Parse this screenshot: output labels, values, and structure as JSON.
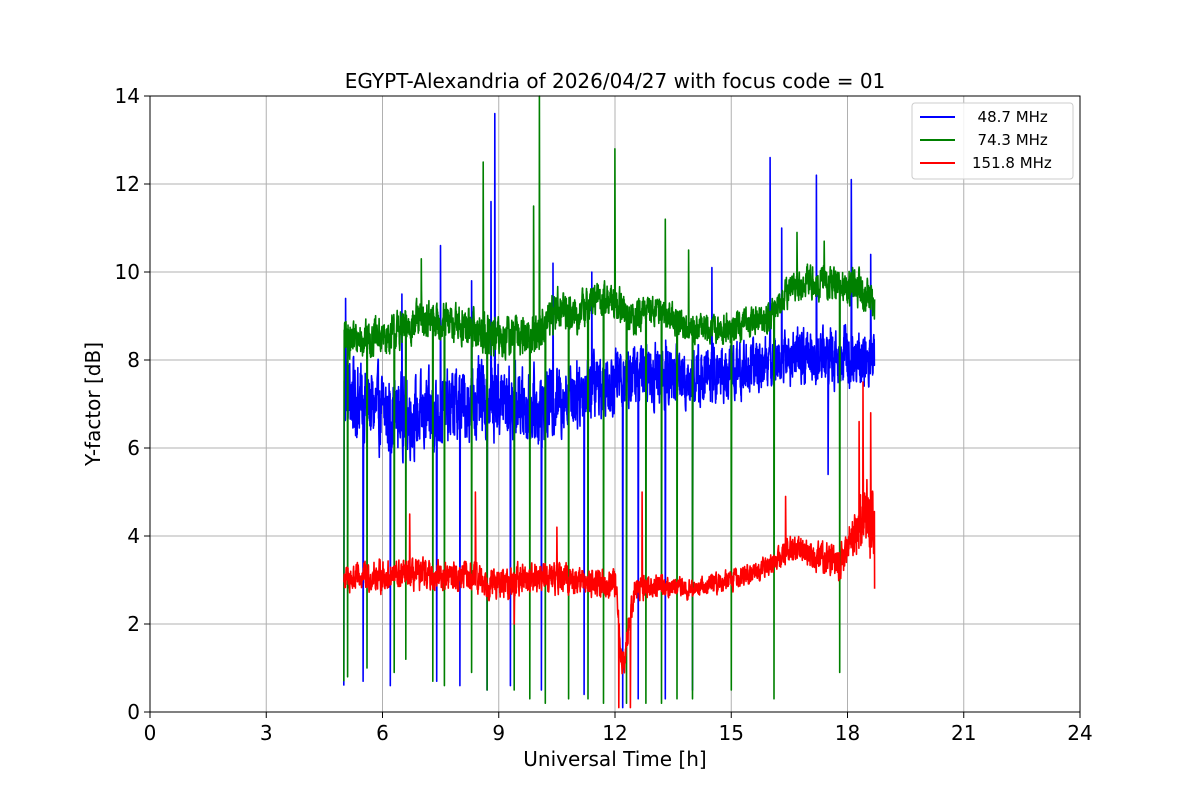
{
  "chart_data": {
    "type": "line",
    "title": "EGYPT-Alexandria of 2026/04/27 with focus code = 01",
    "xlabel": "Universal Time [h]",
    "ylabel": "Y-factor [dB]",
    "xlim": [
      0,
      24
    ],
    "ylim": [
      0,
      14
    ],
    "xticks": [
      0,
      3,
      6,
      9,
      12,
      15,
      18,
      21,
      24
    ],
    "yticks": [
      0,
      2,
      4,
      6,
      8,
      10,
      12,
      14
    ],
    "grid": true,
    "legend_position": "top-right",
    "series": [
      {
        "name": "  48.7 MHz",
        "color": "#0000ff",
        "baseline": [
          [
            5.0,
            7.3
          ],
          [
            6.0,
            6.8
          ],
          [
            7.0,
            6.7
          ],
          [
            8.0,
            7.0
          ],
          [
            9.0,
            7.1
          ],
          [
            10.0,
            6.9
          ],
          [
            11.0,
            7.3
          ],
          [
            12.0,
            7.6
          ],
          [
            13.0,
            7.7
          ],
          [
            14.0,
            7.6
          ],
          [
            15.0,
            7.7
          ],
          [
            16.0,
            8.0
          ],
          [
            17.0,
            8.1
          ],
          [
            18.0,
            8.1
          ],
          [
            18.7,
            8.0
          ]
        ],
        "spread": [
          [
            5.0,
            2.6
          ],
          [
            10.0,
            2.4
          ],
          [
            12.0,
            2.2
          ],
          [
            16.0,
            1.8
          ],
          [
            18.7,
            2.0
          ]
        ],
        "spikes_high": [
          [
            5.05,
            9.4
          ],
          [
            6.5,
            9.5
          ],
          [
            7.5,
            10.6
          ],
          [
            8.3,
            9.8
          ],
          [
            8.9,
            13.6
          ],
          [
            8.8,
            11.6
          ],
          [
            10.4,
            10.2
          ],
          [
            11.4,
            10.0
          ],
          [
            12.2,
            10.5
          ],
          [
            14.5,
            10.1
          ],
          [
            16.0,
            12.6
          ],
          [
            16.3,
            11.0
          ],
          [
            17.2,
            12.2
          ],
          [
            17.5,
            11.9
          ],
          [
            18.1,
            12.1
          ],
          [
            18.6,
            10.4
          ]
        ],
        "spikes_low": [
          [
            5.0,
            0.6
          ],
          [
            5.5,
            0.7
          ],
          [
            6.2,
            0.6
          ],
          [
            7.4,
            0.7
          ],
          [
            8.0,
            0.6
          ],
          [
            8.7,
            0.5
          ],
          [
            9.3,
            0.6
          ],
          [
            10.1,
            0.5
          ],
          [
            11.2,
            0.4
          ],
          [
            12.2,
            0.1
          ],
          [
            12.6,
            0.3
          ],
          [
            13.3,
            0.3
          ],
          [
            14.0,
            0.5
          ],
          [
            17.5,
            5.4
          ]
        ]
      },
      {
        "name": "  74.3 MHz",
        "color": "#008000",
        "baseline": [
          [
            5.0,
            8.5
          ],
          [
            6.0,
            8.5
          ],
          [
            7.0,
            8.9
          ],
          [
            8.0,
            8.8
          ],
          [
            9.0,
            8.5
          ],
          [
            10.0,
            8.6
          ],
          [
            10.5,
            9.2
          ],
          [
            11.0,
            9.0
          ],
          [
            11.5,
            9.4
          ],
          [
            12.0,
            9.3
          ],
          [
            12.5,
            8.9
          ],
          [
            13.0,
            9.2
          ],
          [
            14.0,
            8.7
          ],
          [
            15.0,
            8.7
          ],
          [
            16.0,
            9.0
          ],
          [
            16.5,
            9.6
          ],
          [
            17.0,
            9.8
          ],
          [
            18.0,
            9.7
          ],
          [
            18.7,
            9.4
          ]
        ],
        "spread": [
          [
            5.0,
            1.2
          ],
          [
            10.0,
            1.4
          ],
          [
            14.0,
            0.9
          ],
          [
            16.0,
            1.0
          ],
          [
            18.7,
            1.3
          ]
        ],
        "spikes_high": [
          [
            6.3,
            10.2
          ],
          [
            7.0,
            10.3
          ],
          [
            8.6,
            12.5
          ],
          [
            9.9,
            11.5
          ],
          [
            10.05,
            14.0
          ],
          [
            10.2,
            14.0
          ],
          [
            10.8,
            10.5
          ],
          [
            12.0,
            12.8
          ],
          [
            12.3,
            14.0
          ],
          [
            13.3,
            11.2
          ],
          [
            13.9,
            10.5
          ],
          [
            16.7,
            10.9
          ],
          [
            17.4,
            10.7
          ]
        ],
        "spikes_low": [
          [
            5.0,
            0.7
          ],
          [
            5.1,
            0.8
          ],
          [
            5.6,
            1.0
          ],
          [
            6.3,
            0.9
          ],
          [
            6.6,
            1.2
          ],
          [
            7.3,
            0.7
          ],
          [
            7.6,
            0.6
          ],
          [
            8.3,
            0.9
          ],
          [
            8.7,
            0.5
          ],
          [
            9.4,
            0.5
          ],
          [
            9.8,
            0.3
          ],
          [
            10.2,
            0.2
          ],
          [
            10.8,
            0.3
          ],
          [
            11.3,
            0.3
          ],
          [
            11.7,
            0.2
          ],
          [
            12.3,
            0.2
          ],
          [
            12.8,
            0.2
          ],
          [
            13.2,
            0.2
          ],
          [
            13.6,
            0.3
          ],
          [
            14.0,
            0.3
          ],
          [
            15.0,
            0.5
          ],
          [
            16.1,
            0.3
          ],
          [
            17.8,
            0.9
          ]
        ]
      },
      {
        "name": "151.8 MHz",
        "color": "#ff0000",
        "baseline": [
          [
            5.0,
            3.0
          ],
          [
            6.0,
            3.1
          ],
          [
            7.0,
            3.1
          ],
          [
            8.0,
            3.1
          ],
          [
            9.0,
            2.9
          ],
          [
            10.0,
            3.1
          ],
          [
            11.0,
            3.0
          ],
          [
            12.0,
            2.9
          ],
          [
            12.2,
            1.0
          ],
          [
            12.5,
            2.8
          ],
          [
            13.0,
            2.9
          ],
          [
            14.0,
            2.8
          ],
          [
            15.0,
            3.0
          ],
          [
            16.0,
            3.3
          ],
          [
            16.5,
            3.7
          ],
          [
            17.0,
            3.6
          ],
          [
            17.8,
            3.4
          ],
          [
            18.2,
            4.2
          ],
          [
            18.5,
            4.5
          ],
          [
            18.7,
            4.0
          ]
        ],
        "spread": [
          [
            5.0,
            1.0
          ],
          [
            12.0,
            1.0
          ],
          [
            14.0,
            0.6
          ],
          [
            16.0,
            0.7
          ],
          [
            18.0,
            1.2
          ],
          [
            18.7,
            2.8
          ]
        ],
        "spikes_high": [
          [
            6.7,
            4.5
          ],
          [
            8.4,
            5.0
          ],
          [
            9.4,
            4.4
          ],
          [
            10.5,
            4.2
          ],
          [
            12.7,
            5.0
          ],
          [
            16.4,
            4.9
          ],
          [
            18.3,
            6.6
          ],
          [
            18.4,
            7.5
          ],
          [
            18.6,
            6.8
          ]
        ],
        "spikes_low": [
          [
            9.4,
            2.0
          ],
          [
            12.1,
            0.1
          ],
          [
            12.4,
            0.1
          ],
          [
            18.7,
            2.8
          ]
        ]
      }
    ]
  }
}
